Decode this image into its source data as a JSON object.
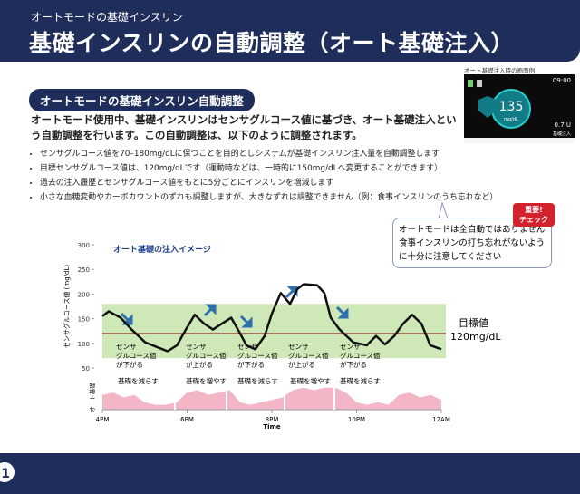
{
  "header": {
    "kicker": "オートモードの基礎インスリン",
    "title": "基礎インスリンの自動調整（オート基礎注入）"
  },
  "screen": {
    "caption": "オート基礎注入時の画面例",
    "time": "09:00",
    "value": "135",
    "unit": "mg/dL",
    "dose": "0.7 U",
    "dose_label": "基礎注入"
  },
  "section": {
    "heading": "オートモードの基礎インスリン自動調整",
    "intro": [
      "オートモード使用中、基礎インスリンはセンサグルコース値に基づき、",
      "オート基礎注入",
      "という自動調整を行います。この自動調整は、以下のように調整されます。"
    ],
    "bullets": [
      "センサグルコース値を70–180mg/dLに保つことを目的としシステムが基礎インスリン注入量を自動調整します",
      "目標センサグルコース値は、120mg/dLです（運動時などは、一時的に150mg/dLへ変更することができます）",
      "過去の注入履歴とセンサグルコース値をもとに5分ごとにインスリンを増減します",
      "小さな血糖変動やカーボカウントのずれも調整しますが、大きなずれは調整できません（例：食事インスリンのうち忘れなど）"
    ]
  },
  "callout": {
    "badge": [
      "重要!",
      "チェック"
    ],
    "lines": [
      "オートモードは全自動ではありません",
      "食事インスリンの打ち忘れがないよう",
      "に十分に注意してください"
    ]
  },
  "footer": {
    "page": "1"
  },
  "chart_data": {
    "type": "line",
    "title": "オート基礎の注入イメージ",
    "y_label": "センサグルコース値 (mg/dL)",
    "x_label": "Time",
    "xlim": [
      16,
      24
    ],
    "xticks": [
      {
        "value": 16,
        "label": "4PM"
      },
      {
        "value": 18,
        "label": "6PM"
      },
      {
        "value": 20,
        "label": "8PM"
      },
      {
        "value": 22,
        "label": "10PM"
      },
      {
        "value": 24,
        "label": "12AM"
      }
    ],
    "ylim": [
      50,
      300
    ],
    "yticks": [
      50,
      100,
      150,
      200,
      250,
      300
    ],
    "grid": false,
    "target_range": [
      70,
      180
    ],
    "target_range_color": "#cfe8b8",
    "target": {
      "value": 120,
      "label": "目標値",
      "value_label": "120mg/dL",
      "color": "#a0654a"
    },
    "x": [
      16,
      16.15,
      16.43,
      16.69,
      17.01,
      17.33,
      17.54,
      17.76,
      17.97,
      18.18,
      18.4,
      18.61,
      18.82,
      19.04,
      19.25,
      19.4,
      19.61,
      19.83,
      20,
      20.21,
      20.43,
      20.6,
      20.75,
      21.07,
      21.24,
      21.39,
      21.6,
      21.92,
      22.24,
      22.46,
      22.67,
      22.89,
      23.1,
      23.31,
      23.53,
      23.74,
      24
    ],
    "series": [
      {
        "color": "#111111",
        "values": [
          155,
          165,
          152,
          128,
          102,
          91,
          84,
          96,
          128,
          158,
          140,
          128,
          140,
          152,
          120,
          96,
          88,
          115,
          160,
          202,
          180,
          210,
          220,
          218,
          202,
          152,
          128,
          102,
          96,
          115,
          98,
          115,
          140,
          158,
          140,
          96,
          88
        ]
      }
    ],
    "annotations": [
      [
        "センサ",
        "グルコース値",
        "が下がる"
      ],
      [
        "センサ",
        "グルコース値",
        "が上がる"
      ],
      [
        "センサ",
        "グルコース値",
        "が下がる"
      ],
      [
        "センサ",
        "グルコース値",
        "が上がる"
      ],
      [
        "センサ",
        "グルコース値",
        "が下がる"
      ]
    ],
    "basal": {
      "label": "オート基礎",
      "color": "#f2b6c6",
      "ylim": [
        0,
        10
      ],
      "x": [
        16,
        16.25,
        16.5,
        16.75,
        17,
        17.25,
        17.5,
        17.75,
        18,
        18.25,
        18.5,
        18.75,
        19,
        19.25,
        19.5,
        19.75,
        20,
        20.25,
        20.5,
        20.75,
        21,
        21.25,
        21.5,
        21.75,
        22,
        22.25,
        22.5,
        22.75,
        23,
        23.25,
        23.5,
        23.75,
        24
      ],
      "values": [
        6,
        7,
        5,
        6,
        3,
        2,
        2,
        3,
        7,
        8,
        6,
        7,
        8,
        3,
        2,
        3,
        4,
        5,
        8,
        9,
        8,
        9,
        9,
        7,
        3,
        2,
        3,
        2,
        6,
        7,
        5,
        6,
        4
      ],
      "segments": [
        "基礎を減らす",
        "基礎を増やす",
        "基礎を減らす",
        "基礎を増やす",
        "基礎を減らす"
      ]
    }
  }
}
